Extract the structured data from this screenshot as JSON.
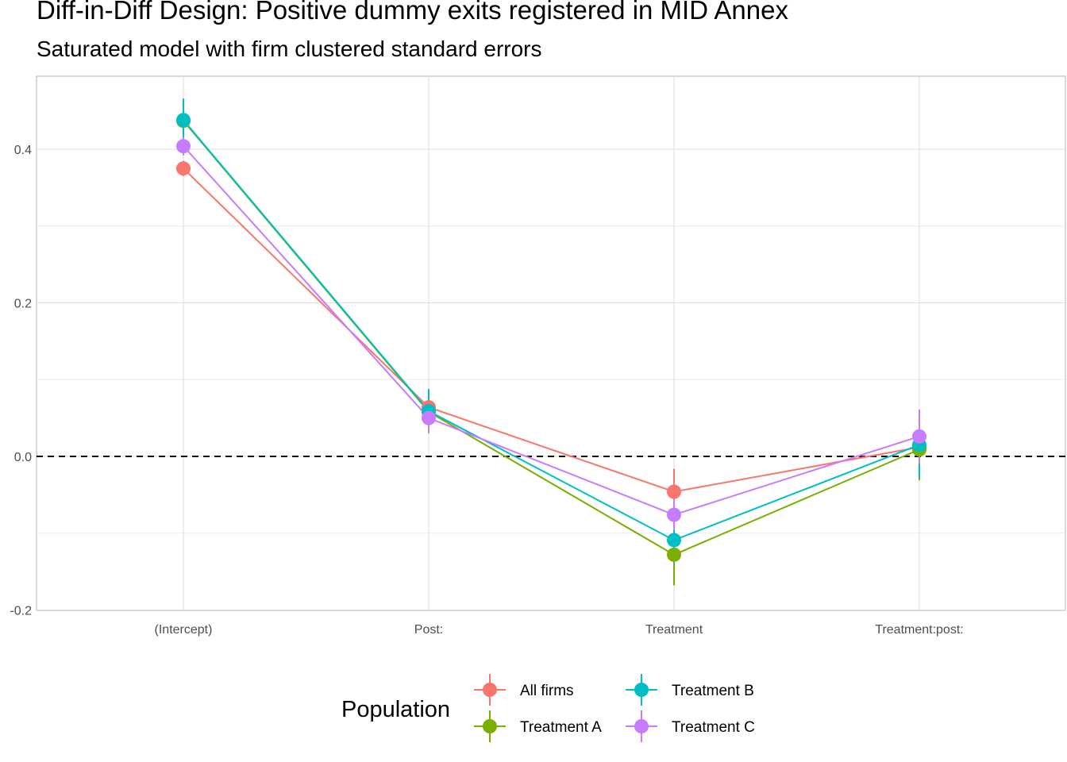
{
  "chart_data": {
    "type": "scatter",
    "title": "Diff-in-Diff Design: Positive dummy exits registered in MID Annex",
    "subtitle": "Saturated model with firm clustered standard errors",
    "xlabel": "",
    "ylabel": "",
    "categories": [
      "(Intercept)",
      "Post:",
      "Treatment",
      "Treatment:post:"
    ],
    "ylim": [
      -0.2,
      0.5
    ],
    "y_ticks": [
      "-0.2",
      "0.0",
      "0.2",
      "0.4"
    ],
    "y_tick_values": [
      -0.2,
      0.0,
      0.2,
      0.4
    ],
    "reference_line": 0.0,
    "grid": true,
    "legend": {
      "title": "Population",
      "position": "bottom"
    },
    "series": [
      {
        "name": "All firms",
        "color": "#F8766D",
        "values": [
          0.375,
          0.064,
          -0.046,
          0.012
        ],
        "ci_low": [
          0.365,
          0.055,
          -0.076,
          0.002
        ],
        "ci_high": [
          0.385,
          0.073,
          -0.016,
          0.022
        ]
      },
      {
        "name": "Treatment A",
        "color": "#7CAE00",
        "values": [
          0.437,
          0.058,
          -0.128,
          0.009
        ],
        "ci_low": [
          0.409,
          0.03,
          -0.168,
          -0.031
        ],
        "ci_high": [
          0.465,
          0.086,
          -0.088,
          0.049
        ]
      },
      {
        "name": "Treatment B",
        "color": "#00BFC4",
        "values": [
          0.438,
          0.059,
          -0.109,
          0.015
        ],
        "ci_low": [
          0.41,
          0.031,
          -0.139,
          -0.028
        ],
        "ci_high": [
          0.466,
          0.088,
          -0.079,
          0.058
        ]
      },
      {
        "name": "Treatment C",
        "color": "#C77CFF",
        "values": [
          0.404,
          0.05,
          -0.076,
          0.026
        ],
        "ci_low": [
          0.392,
          0.03,
          -0.096,
          -0.009
        ],
        "ci_high": [
          0.416,
          0.07,
          -0.056,
          0.061
        ]
      }
    ]
  }
}
